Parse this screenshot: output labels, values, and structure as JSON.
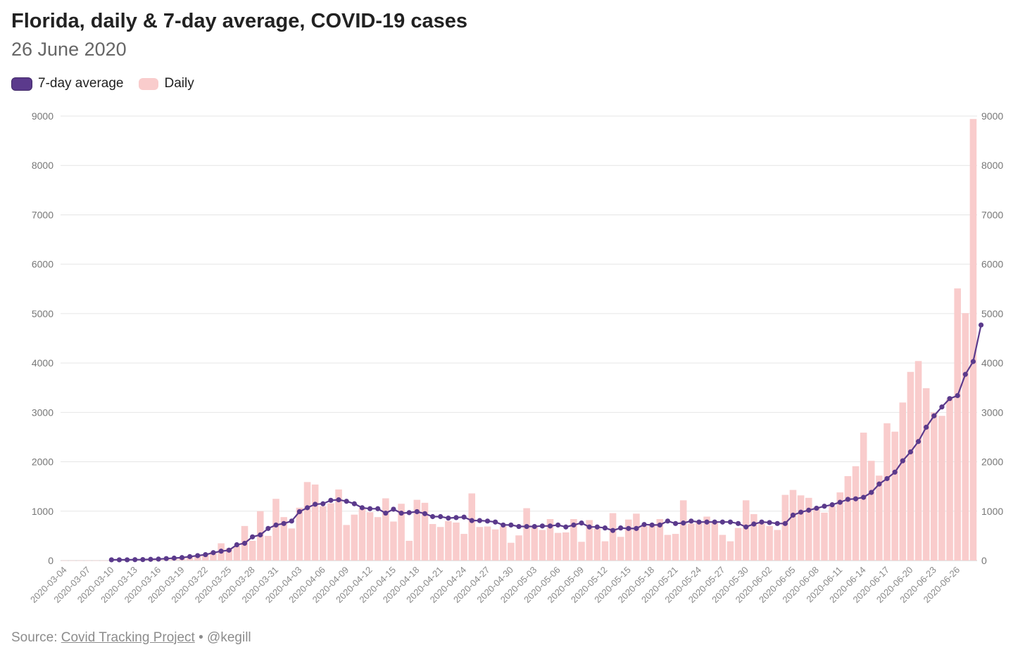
{
  "title": "Florida, daily & 7-day average, COVID-19 cases",
  "subtitle": "26 June 2020",
  "legend": [
    {
      "label": "7-day average",
      "color": "#5b3a8c"
    },
    {
      "label": "Daily",
      "color": "#f9cccc"
    }
  ],
  "source": {
    "prefix": "Source: ",
    "link_text": "Covid Tracking Project",
    "suffix": " • @kegill"
  },
  "colors": {
    "bar": "#f9cccc",
    "line": "#5b3a8c",
    "grid": "#e6e6e6"
  },
  "chart_data": {
    "type": "bar",
    "start_date": "2020-03-04",
    "ylim": [
      0,
      9000
    ],
    "yticks": [
      0,
      1000,
      2000,
      3000,
      4000,
      5000,
      6000,
      7000,
      8000,
      9000
    ],
    "xtick_labels": [
      "2020-03-04",
      "2020-03-07",
      "2020-03-10",
      "2020-03-13",
      "2020-03-16",
      "2020-03-19",
      "2020-03-22",
      "2020-03-25",
      "2020-03-28",
      "2020-03-31",
      "2020-04-03",
      "2020-04-06",
      "2020-04-09",
      "2020-04-12",
      "2020-04-15",
      "2020-04-18",
      "2020-04-21",
      "2020-04-24",
      "2020-04-27",
      "2020-04-30",
      "2020-05-03",
      "2020-05-06",
      "2020-05-09",
      "2020-05-12",
      "2020-05-15",
      "2020-05-18",
      "2020-05-21",
      "2020-05-24",
      "2020-05-27",
      "2020-05-30",
      "2020-06-02",
      "2020-06-05",
      "2020-06-08",
      "2020-06-11",
      "2020-06-14",
      "2020-06-17",
      "2020-06-20",
      "2020-06-23",
      "2020-06-26"
    ],
    "y_axes": [
      "left",
      "right"
    ],
    "grid": true,
    "legend_position": "top-left",
    "series": [
      {
        "name": "Daily",
        "type": "bar",
        "values": [
          2,
          2,
          2,
          2,
          2,
          2,
          5,
          8,
          10,
          15,
          20,
          25,
          35,
          45,
          55,
          70,
          90,
          110,
          130,
          180,
          350,
          250,
          300,
          700,
          400,
          1000,
          500,
          1250,
          880,
          650,
          1070,
          1590,
          1540,
          1100,
          1160,
          1440,
          720,
          930,
          1060,
          980,
          880,
          1260,
          790,
          1150,
          400,
          1230,
          1170,
          740,
          680,
          800,
          770,
          540,
          1360,
          680,
          690,
          630,
          690,
          360,
          510,
          1060,
          690,
          620,
          840,
          560,
          570,
          840,
          380,
          820,
          650,
          390,
          960,
          480,
          830,
          950,
          700,
          720,
          840,
          520,
          540,
          1220,
          750,
          780,
          890,
          780,
          520,
          390,
          660,
          1220,
          940,
          750,
          700,
          620,
          1330,
          1430,
          1320,
          1270,
          1080,
          970,
          1100,
          1380,
          1710,
          1910,
          2590,
          2020,
          1720,
          2780,
          2610,
          3200,
          3820,
          4040,
          3490,
          3000,
          2930,
          3280,
          5510,
          5010,
          8940
        ]
      },
      {
        "name": "7-day average",
        "type": "line",
        "start_index": 6,
        "values": [
          15,
          15,
          15,
          18,
          20,
          25,
          30,
          40,
          50,
          60,
          80,
          100,
          120,
          160,
          190,
          210,
          320,
          350,
          480,
          520,
          650,
          720,
          750,
          800,
          990,
          1070,
          1140,
          1150,
          1220,
          1230,
          1200,
          1150,
          1070,
          1050,
          1050,
          960,
          1040,
          960,
          970,
          990,
          950,
          890,
          890,
          860,
          870,
          880,
          810,
          810,
          800,
          780,
          720,
          720,
          690,
          690,
          690,
          700,
          700,
          720,
          680,
          720,
          760,
          680,
          680,
          660,
          610,
          660,
          650,
          650,
          730,
          720,
          720,
          800,
          750,
          760,
          800,
          780,
          780,
          780,
          780,
          780,
          750,
          680,
          740,
          780,
          770,
          750,
          750,
          920,
          980,
          1020,
          1060,
          1100,
          1130,
          1180,
          1240,
          1250,
          1280,
          1380,
          1550,
          1660,
          1790,
          2020,
          2200,
          2410,
          2700,
          2930,
          3110,
          3280,
          3340,
          3770,
          4030,
          4770
        ]
      }
    ]
  }
}
